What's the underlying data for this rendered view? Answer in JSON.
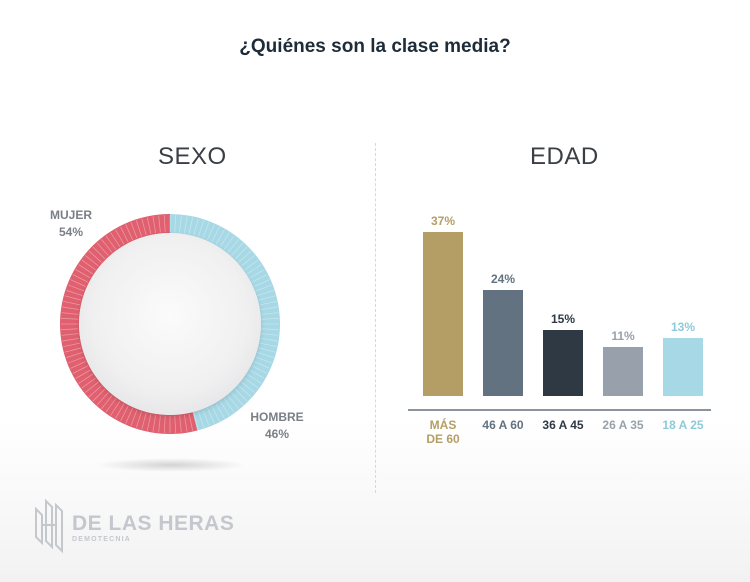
{
  "title": "¿Quiénes son la clase media?",
  "sexo": {
    "title": "SEXO",
    "chart_data": {
      "type": "pie",
      "categories": [
        "MUJER",
        "HOMBRE"
      ],
      "values": [
        54,
        46
      ],
      "value_labels": [
        "54%",
        "46%"
      ],
      "colors": [
        "#e0606f",
        "#a7d8e5"
      ]
    }
  },
  "edad": {
    "title": "EDAD",
    "chart_data": {
      "type": "bar",
      "categories": [
        {
          "line1": "MÁS",
          "line2": "DE 60"
        },
        {
          "line1": "46 A 60",
          "line2": ""
        },
        {
          "line1": "36 A 45",
          "line2": ""
        },
        {
          "line1": "26 A 35",
          "line2": ""
        },
        {
          "line1": "18 A 25",
          "line2": ""
        }
      ],
      "values": [
        37,
        24,
        15,
        11,
        13
      ],
      "value_labels": [
        "37%",
        "24%",
        "15%",
        "11%",
        "13%"
      ],
      "colors": [
        "#b59e66",
        "#627280",
        "#2e3944",
        "#98a1ab",
        "#a7d8e5"
      ],
      "label_colors": [
        "#b59e66",
        "#627280",
        "#2e3944",
        "#98a1ab",
        "#8ccadb"
      ],
      "ylim": [
        0,
        40
      ]
    }
  },
  "logo": {
    "name": "DE LAS HERAS",
    "sub": "DEMOTECNIA"
  }
}
